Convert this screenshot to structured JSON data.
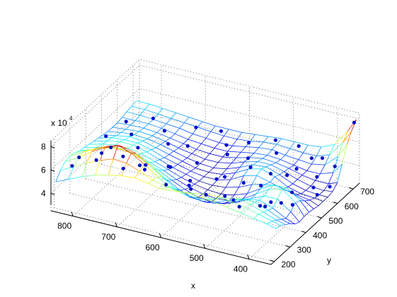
{
  "chart_data": {
    "type": "surface",
    "title": "",
    "xlabel": "x",
    "ylabel": "y",
    "zlabel": "",
    "z_exponent_label": "x 10",
    "z_exponent_power": "4",
    "xlim": [
      350,
      850
    ],
    "ylim": [
      180,
      740
    ],
    "zlim": [
      2.5,
      8.5
    ],
    "x_ticks": [
      400,
      500,
      600,
      700,
      800
    ],
    "y_ticks": [
      200,
      300,
      400,
      500,
      600,
      700
    ],
    "z_ticks": [
      4,
      6,
      8
    ],
    "colormap": "jet",
    "grid": true,
    "grid_x": [
      850,
      820,
      790,
      760,
      730,
      700,
      670,
      640,
      610,
      580,
      550,
      520,
      490,
      460,
      430,
      400,
      370,
      350
    ],
    "grid_y": [
      210,
      240,
      270,
      300,
      330,
      360,
      390,
      420,
      450,
      480,
      510,
      540,
      570,
      600,
      630,
      660,
      690,
      720
    ],
    "z_grid": [
      [
        4.6,
        5.1,
        5.6,
        6.0,
        6.3,
        6.5,
        6.6,
        6.4,
        6.2,
        6.3,
        6.4,
        6.3,
        6.2,
        6.0,
        5.8,
        5.6,
        5.4,
        5.2
      ],
      [
        5.2,
        5.8,
        6.4,
        6.9,
        7.3,
        7.2,
        6.8,
        6.3,
        6.0,
        5.9,
        6.0,
        6.2,
        6.3,
        6.1,
        5.9,
        5.6,
        5.3,
        5.1
      ],
      [
        5.6,
        6.2,
        7.0,
        7.6,
        8.1,
        7.7,
        7.0,
        6.2,
        5.6,
        5.3,
        5.2,
        5.4,
        5.8,
        6.0,
        5.8,
        5.4,
        5.0,
        4.8
      ],
      [
        5.7,
        6.3,
        6.9,
        7.4,
        7.6,
        7.3,
        6.6,
        5.8,
        5.1,
        4.7,
        4.6,
        4.8,
        5.2,
        5.6,
        5.6,
        5.2,
        4.7,
        4.5
      ],
      [
        5.6,
        6.1,
        6.6,
        6.9,
        6.8,
        6.5,
        5.9,
        5.2,
        4.6,
        4.2,
        4.1,
        4.3,
        4.7,
        5.2,
        5.4,
        5.0,
        4.4,
        4.1
      ],
      [
        5.4,
        5.8,
        6.2,
        6.4,
        6.3,
        5.9,
        5.4,
        4.8,
        4.3,
        3.9,
        3.8,
        3.9,
        4.3,
        4.9,
        5.4,
        5.4,
        4.6,
        3.9
      ],
      [
        5.3,
        5.6,
        5.9,
        6.0,
        5.8,
        5.4,
        5.0,
        4.5,
        4.1,
        3.8,
        3.7,
        3.8,
        4.2,
        4.9,
        5.6,
        5.9,
        5.0,
        4.0
      ],
      [
        5.2,
        5.5,
        5.7,
        5.7,
        5.5,
        5.1,
        4.7,
        4.3,
        4.0,
        3.8,
        3.7,
        3.9,
        4.3,
        5.0,
        5.6,
        5.6,
        4.8,
        4.0
      ],
      [
        5.1,
        5.4,
        5.6,
        5.6,
        5.3,
        4.9,
        4.5,
        4.2,
        3.9,
        3.8,
        3.9,
        4.2,
        4.7,
        5.0,
        5.1,
        4.8,
        4.4,
        3.9
      ],
      [
        5.0,
        5.3,
        5.4,
        5.4,
        5.1,
        4.7,
        4.4,
        4.1,
        3.9,
        3.9,
        4.2,
        4.8,
        5.1,
        4.8,
        4.5,
        4.3,
        4.1,
        3.8
      ],
      [
        4.9,
        5.1,
        5.3,
        5.2,
        4.9,
        4.6,
        4.3,
        4.0,
        3.9,
        4.0,
        4.4,
        5.0,
        5.3,
        4.9,
        4.3,
        4.0,
        3.9,
        3.8
      ],
      [
        4.8,
        5.0,
        5.1,
        5.0,
        4.8,
        4.5,
        4.2,
        4.0,
        3.9,
        4.1,
        4.5,
        5.0,
        5.1,
        4.7,
        4.2,
        3.9,
        3.8,
        3.8
      ],
      [
        4.8,
        4.9,
        5.0,
        4.9,
        4.7,
        4.4,
        4.2,
        4.0,
        4.0,
        4.2,
        4.6,
        4.9,
        4.9,
        4.6,
        4.2,
        3.9,
        3.8,
        3.9
      ],
      [
        4.8,
        4.9,
        4.9,
        4.8,
        4.6,
        4.4,
        4.2,
        4.1,
        4.1,
        4.3,
        4.6,
        4.8,
        4.7,
        4.5,
        4.2,
        4.0,
        4.0,
        4.3
      ],
      [
        4.9,
        4.9,
        4.9,
        4.8,
        4.6,
        4.4,
        4.3,
        4.2,
        4.2,
        4.4,
        4.6,
        4.7,
        4.6,
        4.4,
        4.2,
        4.2,
        4.6,
        5.5
      ],
      [
        5.0,
        5.0,
        4.9,
        4.8,
        4.7,
        4.5,
        4.4,
        4.3,
        4.3,
        4.5,
        4.7,
        4.8,
        4.6,
        4.5,
        4.4,
        4.6,
        5.6,
        6.8
      ],
      [
        5.1,
        5.1,
        5.0,
        4.9,
        4.8,
        4.7,
        4.6,
        4.5,
        4.5,
        4.6,
        4.8,
        4.9,
        4.8,
        4.7,
        4.7,
        5.1,
        6.4,
        7.6
      ],
      [
        5.2,
        5.2,
        5.1,
        5.0,
        4.9,
        4.8,
        4.7,
        4.7,
        4.7,
        4.8,
        4.9,
        5.0,
        5.0,
        5.0,
        5.1,
        5.6,
        7.0,
        8.2
      ]
    ],
    "points": [
      [
        820,
        230,
        6.0
      ],
      [
        790,
        300,
        5.9
      ],
      [
        760,
        250,
        7.4
      ],
      [
        740,
        330,
        6.3
      ],
      [
        700,
        220,
        7.0
      ],
      [
        680,
        300,
        6.1
      ],
      [
        650,
        380,
        5.6
      ],
      [
        610,
        240,
        6.2
      ],
      [
        590,
        330,
        5.2
      ],
      [
        560,
        420,
        4.9
      ],
      [
        530,
        270,
        5.7
      ],
      [
        500,
        360,
        4.4
      ],
      [
        470,
        450,
        4.8
      ],
      [
        440,
        230,
        6.0
      ],
      [
        410,
        310,
        5.3
      ],
      [
        380,
        400,
        4.6
      ],
      [
        360,
        500,
        4.4
      ],
      [
        800,
        420,
        5.4
      ],
      [
        760,
        480,
        5.0
      ],
      [
        720,
        560,
        4.7
      ],
      [
        680,
        450,
        4.5
      ],
      [
        640,
        520,
        4.3
      ],
      [
        600,
        600,
        4.4
      ],
      [
        570,
        500,
        4.0
      ],
      [
        540,
        580,
        4.1
      ],
      [
        510,
        660,
        4.6
      ],
      [
        480,
        540,
        4.6
      ],
      [
        450,
        620,
        4.3
      ],
      [
        420,
        700,
        4.5
      ],
      [
        390,
        560,
        4.0
      ],
      [
        370,
        640,
        5.0
      ],
      [
        355,
        720,
        7.9
      ],
      [
        830,
        600,
        5.1
      ],
      [
        790,
        660,
        5.0
      ],
      [
        750,
        620,
        4.8
      ],
      [
        700,
        680,
        4.8
      ],
      [
        650,
        700,
        4.7
      ],
      [
        620,
        650,
        4.4
      ],
      [
        580,
        680,
        4.6
      ],
      [
        530,
        710,
        4.9
      ],
      [
        470,
        690,
        5.2
      ],
      [
        430,
        660,
        4.9
      ],
      [
        400,
        610,
        4.2
      ],
      [
        360,
        580,
        4.1
      ],
      [
        720,
        380,
        5.1
      ],
      [
        660,
        250,
        7.3
      ],
      [
        550,
        230,
        6.5
      ],
      [
        480,
        250,
        6.3
      ],
      [
        620,
        420,
        4.2
      ],
      [
        520,
        480,
        4.2
      ],
      [
        440,
        430,
        3.9
      ],
      [
        400,
        250,
        6.2
      ],
      [
        370,
        300,
        6.1
      ],
      [
        840,
        500,
        5.0
      ],
      [
        800,
        550,
        4.9
      ],
      [
        690,
        600,
        4.3
      ],
      [
        560,
        620,
        4.2
      ],
      [
        450,
        560,
        4.5
      ],
      [
        410,
        480,
        4.4
      ],
      [
        840,
        330,
        5.3
      ]
    ],
    "point_color": "#0010c8"
  }
}
